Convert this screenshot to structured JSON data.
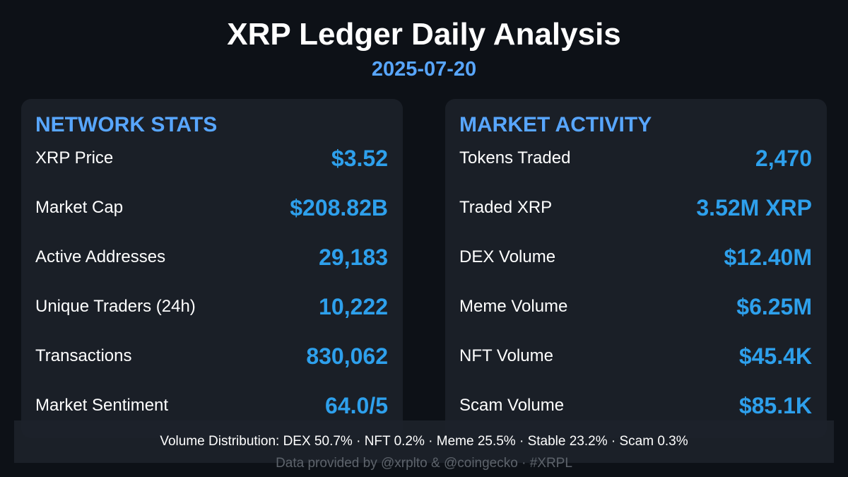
{
  "header": {
    "title": "XRP Ledger Daily Analysis",
    "date": "2025-07-20"
  },
  "network": {
    "heading": "NETWORK STATS",
    "rows": [
      {
        "label": "XRP Price",
        "value": "$3.52"
      },
      {
        "label": "Market Cap",
        "value": "$208.82B"
      },
      {
        "label": "Active Addresses",
        "value": "29,183"
      },
      {
        "label": "Unique Traders (24h)",
        "value": "10,222"
      },
      {
        "label": "Transactions",
        "value": "830,062"
      },
      {
        "label": "Market Sentiment",
        "value": "64.0/5"
      }
    ]
  },
  "market": {
    "heading": "MARKET ACTIVITY",
    "rows": [
      {
        "label": "Tokens Traded",
        "value": "2,470"
      },
      {
        "label": "Traded XRP",
        "value": "3.52M XRP"
      },
      {
        "label": "DEX Volume",
        "value": "$12.40M"
      },
      {
        "label": "Meme Volume",
        "value": "$6.25M"
      },
      {
        "label": "NFT Volume",
        "value": "$45.4K"
      },
      {
        "label": "Scam Volume",
        "value": "$85.1K"
      }
    ]
  },
  "footer": {
    "distribution": "Volume Distribution: DEX 50.7% · NFT 0.2% · Meme 25.5% · Stable 23.2% · Scam 0.3%",
    "credit": "Data provided by @xrplto & @coingecko · #XRPL"
  },
  "colors": {
    "background": "#0d1117",
    "card": "#1a1f27",
    "heading": "#58a6ff",
    "value": "#2ea0ec"
  }
}
